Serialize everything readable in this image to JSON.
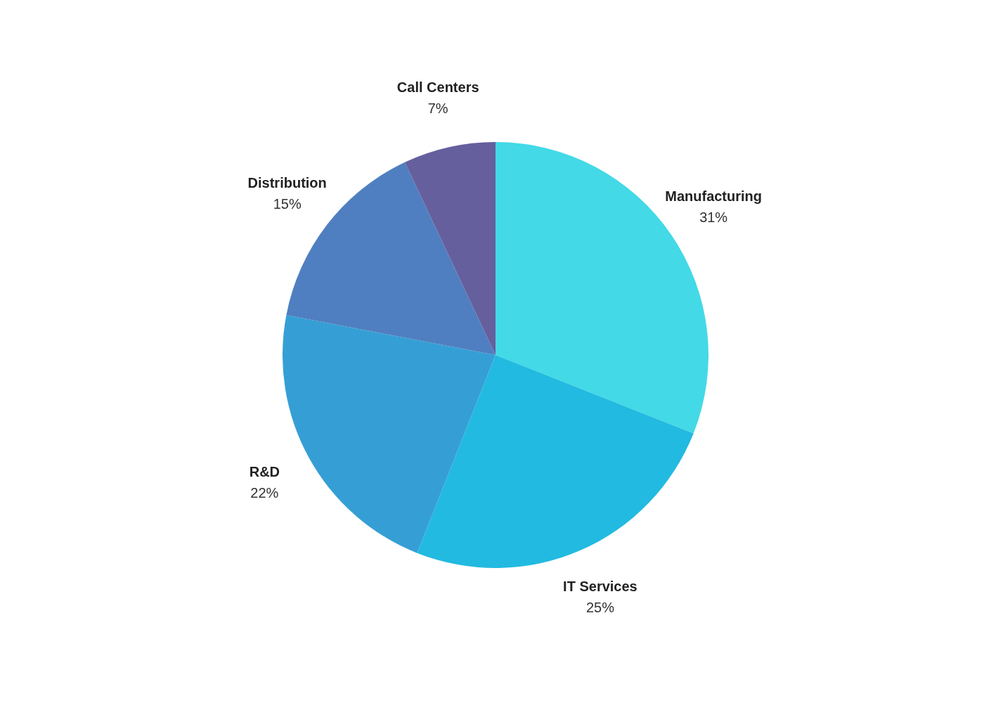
{
  "chart_data": {
    "type": "pie",
    "categories": [
      "Manufacturing",
      "IT Services",
      "R&D",
      "Distribution",
      "Call Centers"
    ],
    "values": [
      31,
      25,
      22,
      15,
      7
    ],
    "colors": [
      "#43d9e6",
      "#22bae0",
      "#359fd5",
      "#4f7fc0",
      "#655f9e"
    ],
    "value_labels": [
      "31%",
      "25%",
      "22%",
      "15%",
      "7%"
    ]
  }
}
